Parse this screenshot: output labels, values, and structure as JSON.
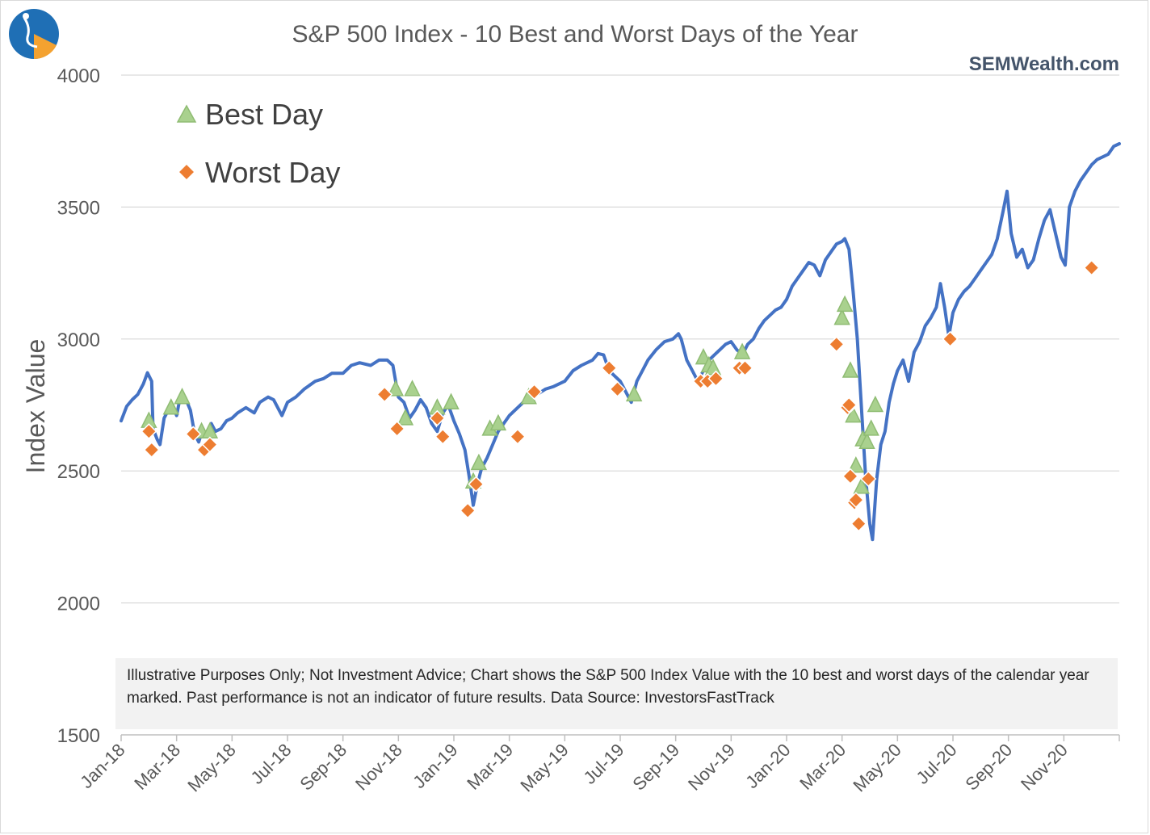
{
  "brand": "SEMWealth.com",
  "logo": {
    "colors": [
      "#1f6fb5",
      "#f4a230",
      "#ffffff"
    ]
  },
  "disclaimer": "Illustrative Purposes Only; Not Investment Advice; Chart shows the S&P 500 Index Value with the 10 best and worst days of the calendar year marked.  Past performance is not an indicator of future results. Data Source: InvestorsFastTrack",
  "chart_data": {
    "type": "line",
    "title": "S&P 500 Index - 10 Best and Worst Days of the Year",
    "xlabel": "",
    "ylabel": "Index Value",
    "ylim": [
      1500,
      4000
    ],
    "yticks": [
      1500,
      2000,
      2500,
      3000,
      3500,
      4000
    ],
    "xlim": [
      0,
      36
    ],
    "x_unit": "months since Jan-18",
    "xticks": [
      "Jan-18",
      "Mar-18",
      "May-18",
      "Jul-18",
      "Sep-18",
      "Nov-18",
      "Jan-19",
      "Mar-19",
      "May-19",
      "Jul-19",
      "Sep-19",
      "Nov-19",
      "Jan-20",
      "Mar-20",
      "May-20",
      "Jul-20",
      "Sep-20",
      "Nov-20"
    ],
    "grid": true,
    "legend": [
      "Best Day",
      "Worst Day"
    ],
    "legend_position": "top-left",
    "colors": {
      "line": "#4472c4",
      "best": "#a9d18e",
      "worst": "#ed7d31"
    },
    "series": [
      {
        "name": "S&P 500 Index",
        "points": [
          [
            0,
            2690
          ],
          [
            0.2,
            2745
          ],
          [
            0.4,
            2770
          ],
          [
            0.6,
            2790
          ],
          [
            0.8,
            2830
          ],
          [
            0.95,
            2872
          ],
          [
            1.1,
            2840
          ],
          [
            1.15,
            2660
          ],
          [
            1.3,
            2620
          ],
          [
            1.4,
            2600
          ],
          [
            1.55,
            2700
          ],
          [
            1.7,
            2730
          ],
          [
            1.85,
            2750
          ],
          [
            2.0,
            2710
          ],
          [
            2.15,
            2790
          ],
          [
            2.3,
            2780
          ],
          [
            2.5,
            2730
          ],
          [
            2.65,
            2640
          ],
          [
            2.8,
            2610
          ],
          [
            2.95,
            2660
          ],
          [
            3.1,
            2630
          ],
          [
            3.25,
            2680
          ],
          [
            3.4,
            2650
          ],
          [
            3.6,
            2660
          ],
          [
            3.8,
            2690
          ],
          [
            4.0,
            2700
          ],
          [
            4.2,
            2720
          ],
          [
            4.5,
            2740
          ],
          [
            4.8,
            2720
          ],
          [
            5.0,
            2760
          ],
          [
            5.3,
            2780
          ],
          [
            5.5,
            2770
          ],
          [
            5.8,
            2710
          ],
          [
            6.0,
            2760
          ],
          [
            6.3,
            2780
          ],
          [
            6.6,
            2810
          ],
          [
            7.0,
            2840
          ],
          [
            7.3,
            2850
          ],
          [
            7.6,
            2870
          ],
          [
            8.0,
            2870
          ],
          [
            8.3,
            2900
          ],
          [
            8.6,
            2910
          ],
          [
            9.0,
            2900
          ],
          [
            9.3,
            2920
          ],
          [
            9.6,
            2920
          ],
          [
            9.8,
            2900
          ],
          [
            10.0,
            2780
          ],
          [
            10.2,
            2760
          ],
          [
            10.4,
            2700
          ],
          [
            10.6,
            2730
          ],
          [
            10.8,
            2770
          ],
          [
            11.0,
            2740
          ],
          [
            11.2,
            2680
          ],
          [
            11.4,
            2650
          ],
          [
            11.6,
            2720
          ],
          [
            11.8,
            2750
          ],
          [
            12.0,
            2690
          ],
          [
            12.2,
            2640
          ],
          [
            12.4,
            2580
          ],
          [
            12.55,
            2480
          ],
          [
            12.7,
            2370
          ],
          [
            12.85,
            2450
          ],
          [
            13.0,
            2510
          ],
          [
            13.2,
            2550
          ],
          [
            13.4,
            2600
          ],
          [
            13.6,
            2650
          ],
          [
            13.8,
            2680
          ],
          [
            14.0,
            2710
          ],
          [
            14.3,
            2740
          ],
          [
            14.6,
            2770
          ],
          [
            15.0,
            2790
          ],
          [
            15.3,
            2810
          ],
          [
            15.6,
            2820
          ],
          [
            16.0,
            2840
          ],
          [
            16.3,
            2880
          ],
          [
            16.6,
            2900
          ],
          [
            17.0,
            2920
          ],
          [
            17.2,
            2945
          ],
          [
            17.4,
            2940
          ],
          [
            17.6,
            2880
          ],
          [
            17.8,
            2860
          ],
          [
            18.0,
            2840
          ],
          [
            18.2,
            2800
          ],
          [
            18.4,
            2760
          ],
          [
            18.6,
            2840
          ],
          [
            18.8,
            2880
          ],
          [
            19.0,
            2920
          ],
          [
            19.3,
            2960
          ],
          [
            19.6,
            2990
          ],
          [
            19.9,
            3000
          ],
          [
            20.1,
            3020
          ],
          [
            20.2,
            3000
          ],
          [
            20.4,
            2920
          ],
          [
            20.6,
            2880
          ],
          [
            20.8,
            2840
          ],
          [
            21.0,
            2880
          ],
          [
            21.2,
            2920
          ],
          [
            21.4,
            2940
          ],
          [
            21.6,
            2960
          ],
          [
            21.8,
            2980
          ],
          [
            22.0,
            2990
          ],
          [
            22.2,
            2960
          ],
          [
            22.4,
            2940
          ],
          [
            22.6,
            2980
          ],
          [
            22.8,
            3000
          ],
          [
            23.0,
            3040
          ],
          [
            23.2,
            3070
          ],
          [
            23.4,
            3090
          ],
          [
            23.6,
            3110
          ],
          [
            23.8,
            3120
          ],
          [
            24.0,
            3150
          ],
          [
            24.2,
            3200
          ],
          [
            24.4,
            3230
          ],
          [
            24.6,
            3260
          ],
          [
            24.8,
            3290
          ],
          [
            25.0,
            3280
          ],
          [
            25.2,
            3240
          ],
          [
            25.4,
            3300
          ],
          [
            25.6,
            3330
          ],
          [
            25.8,
            3360
          ],
          [
            26.0,
            3370
          ],
          [
            26.1,
            3380
          ],
          [
            26.25,
            3340
          ],
          [
            26.4,
            3180
          ],
          [
            26.55,
            3000
          ],
          [
            26.7,
            2740
          ],
          [
            26.85,
            2480
          ],
          [
            27.0,
            2300
          ],
          [
            27.1,
            2240
          ],
          [
            27.25,
            2470
          ],
          [
            27.4,
            2600
          ],
          [
            27.55,
            2650
          ],
          [
            27.7,
            2760
          ],
          [
            27.85,
            2830
          ],
          [
            28.0,
            2880
          ],
          [
            28.2,
            2920
          ],
          [
            28.4,
            2840
          ],
          [
            28.6,
            2950
          ],
          [
            28.8,
            2990
          ],
          [
            29.0,
            3050
          ],
          [
            29.2,
            3080
          ],
          [
            29.4,
            3120
          ],
          [
            29.55,
            3210
          ],
          [
            29.7,
            3120
          ],
          [
            29.85,
            3010
          ],
          [
            30.0,
            3100
          ],
          [
            30.2,
            3150
          ],
          [
            30.4,
            3180
          ],
          [
            30.6,
            3200
          ],
          [
            30.8,
            3230
          ],
          [
            31.0,
            3260
          ],
          [
            31.2,
            3290
          ],
          [
            31.4,
            3320
          ],
          [
            31.6,
            3380
          ],
          [
            31.8,
            3480
          ],
          [
            31.95,
            3560
          ],
          [
            32.1,
            3400
          ],
          [
            32.3,
            3310
          ],
          [
            32.5,
            3340
          ],
          [
            32.7,
            3270
          ],
          [
            32.9,
            3300
          ],
          [
            33.1,
            3380
          ],
          [
            33.3,
            3450
          ],
          [
            33.5,
            3490
          ],
          [
            33.7,
            3400
          ],
          [
            33.9,
            3310
          ],
          [
            34.05,
            3280
          ],
          [
            34.2,
            3500
          ],
          [
            34.4,
            3560
          ],
          [
            34.6,
            3600
          ],
          [
            34.8,
            3630
          ],
          [
            35.0,
            3660
          ],
          [
            35.2,
            3680
          ],
          [
            35.4,
            3690
          ],
          [
            35.6,
            3700
          ],
          [
            35.8,
            3730
          ],
          [
            36.0,
            3740
          ]
        ]
      }
    ],
    "best_days": [
      [
        1.0,
        2690
      ],
      [
        1.8,
        2740
      ],
      [
        2.2,
        2780
      ],
      [
        2.9,
        2650
      ],
      [
        3.2,
        2650
      ],
      [
        9.9,
        2810
      ],
      [
        10.25,
        2700
      ],
      [
        10.5,
        2810
      ],
      [
        11.4,
        2740
      ],
      [
        11.9,
        2760
      ],
      [
        12.7,
        2460
      ],
      [
        12.9,
        2530
      ],
      [
        13.3,
        2660
      ],
      [
        13.6,
        2680
      ],
      [
        14.7,
        2780
      ],
      [
        18.5,
        2790
      ],
      [
        21.0,
        2930
      ],
      [
        21.2,
        2900
      ],
      [
        21.35,
        2890
      ],
      [
        22.4,
        2950
      ],
      [
        26.0,
        3080
      ],
      [
        26.1,
        3130
      ],
      [
        26.3,
        2880
      ],
      [
        26.4,
        2710
      ],
      [
        26.5,
        2520
      ],
      [
        26.7,
        2440
      ],
      [
        26.75,
        2620
      ],
      [
        26.9,
        2610
      ],
      [
        27.05,
        2660
      ],
      [
        27.2,
        2750
      ]
    ],
    "worst_days": [
      [
        1.0,
        2650
      ],
      [
        1.1,
        2580
      ],
      [
        2.6,
        2640
      ],
      [
        3.0,
        2580
      ],
      [
        3.2,
        2600
      ],
      [
        9.5,
        2790
      ],
      [
        9.95,
        2660
      ],
      [
        11.4,
        2700
      ],
      [
        11.6,
        2630
      ],
      [
        12.5,
        2350
      ],
      [
        12.8,
        2450
      ],
      [
        14.3,
        2630
      ],
      [
        14.9,
        2800
      ],
      [
        17.6,
        2890
      ],
      [
        17.9,
        2810
      ],
      [
        20.9,
        2840
      ],
      [
        21.15,
        2840
      ],
      [
        21.45,
        2850
      ],
      [
        22.3,
        2890
      ],
      [
        22.5,
        2890
      ],
      [
        25.8,
        2980
      ],
      [
        26.2,
        2740
      ],
      [
        26.25,
        2750
      ],
      [
        26.3,
        2480
      ],
      [
        26.45,
        2380
      ],
      [
        26.5,
        2390
      ],
      [
        26.6,
        2300
      ],
      [
        26.95,
        2470
      ],
      [
        29.9,
        3000
      ],
      [
        35.0,
        3270
      ]
    ]
  }
}
